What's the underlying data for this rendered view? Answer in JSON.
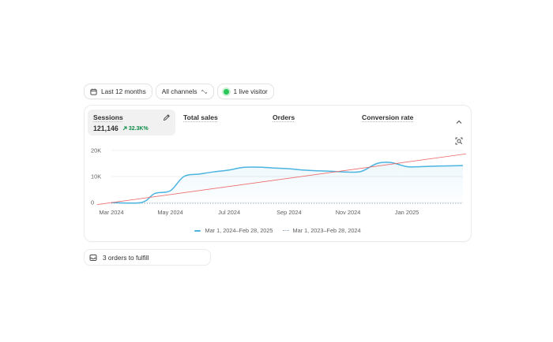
{
  "filters": {
    "date_range": "Last 12 months",
    "channel": "All channels",
    "live_visitors": "1 live visitor"
  },
  "metrics": [
    {
      "label": "Sessions",
      "value": "121,146",
      "change": "32.3K%",
      "active": true
    },
    {
      "label": "Total sales"
    },
    {
      "label": "Orders"
    },
    {
      "label": "Conversion rate"
    }
  ],
  "chart_data": {
    "type": "line",
    "metric": "Sessions",
    "x_ticks": [
      "Mar 2024",
      "May 2024",
      "Jul 2024",
      "Sep 2024",
      "Nov 2024",
      "Jan 2025"
    ],
    "y_ticks": [
      "0",
      "10K",
      "20K"
    ],
    "ylim": [
      0,
      20000
    ],
    "series": [
      {
        "name": "Mar 1, 2024–Feb 28, 2025",
        "color": "#4bb4e0",
        "style": "solid-area",
        "x": [
          "2024-03-01",
          "2024-04-01",
          "2024-04-15",
          "2024-05-01",
          "2024-05-15",
          "2024-06-01",
          "2024-06-15",
          "2024-07-01",
          "2024-07-15",
          "2024-08-01",
          "2024-08-15",
          "2024-09-01",
          "2024-09-15",
          "2024-10-01",
          "2024-10-15",
          "2024-11-01",
          "2024-11-15",
          "2024-12-01",
          "2024-12-15",
          "2025-01-01",
          "2025-01-15",
          "2025-02-01",
          "2025-02-28"
        ],
        "values": [
          0,
          0,
          3500,
          4500,
          10000,
          11000,
          11800,
          12500,
          13500,
          13600,
          13300,
          13000,
          12500,
          12200,
          12000,
          11700,
          12000,
          15000,
          15400,
          13800,
          13800,
          14000,
          14200
        ]
      },
      {
        "name": "Mar 1, 2023–Feb 28, 2024",
        "color": "#8fa3b3",
        "style": "dotted",
        "x": [
          "2024-03-01",
          "2025-02-28"
        ],
        "values": [
          0,
          0
        ]
      },
      {
        "name": "Trend",
        "color": "#ee6a6a",
        "style": "solid-thin",
        "x": [
          "2024-03-01",
          "2025-02-28"
        ],
        "values": [
          -800,
          18700
        ]
      }
    ],
    "grid": true,
    "legend_position": "bottom-center"
  },
  "fulfill": {
    "label": "3 orders to fulfill"
  },
  "icons": {
    "calendar": "calendar-icon",
    "channel_toggle": "arrows-icon",
    "edit": "pencil-icon",
    "collapse": "chevron-up-icon",
    "zoom": "zoom-icon",
    "orders": "inbox-icon"
  }
}
